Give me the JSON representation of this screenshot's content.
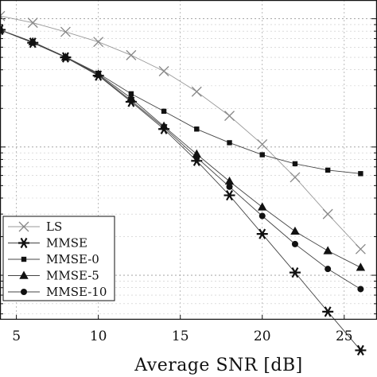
{
  "chart_data": {
    "type": "line",
    "xlabel": "Average  SNR  [dB]",
    "ylabel": "",
    "title": "",
    "xlim": [
      4,
      27
    ],
    "ylim": [
      0.0045,
      1.4
    ],
    "y_scale": "log",
    "x_ticks": [
      5,
      10,
      15,
      20,
      25
    ],
    "grid": true,
    "legend_position": "lower-left",
    "series": [
      {
        "name": "LS",
        "marker": "x",
        "color": "#888888",
        "x": [
          4,
          6,
          8,
          10,
          12,
          14,
          16,
          18,
          20,
          22,
          24,
          26
        ],
        "y": [
          1.05,
          0.93,
          0.79,
          0.66,
          0.52,
          0.39,
          0.27,
          0.175,
          0.105,
          0.058,
          0.03,
          0.016
        ]
      },
      {
        "name": "MMSE",
        "marker": "star",
        "color": "#333333",
        "x": [
          4,
          6,
          8,
          10,
          12,
          14,
          16,
          18,
          20,
          22,
          24,
          26
        ],
        "y": [
          0.82,
          0.65,
          0.5,
          0.36,
          0.225,
          0.138,
          0.078,
          0.042,
          0.021,
          0.0105,
          0.0052,
          0.0026
        ]
      },
      {
        "name": "MMSE-0",
        "marker": "square",
        "color": "#333333",
        "x": [
          4,
          6,
          8,
          10,
          12,
          14,
          16,
          18,
          20,
          22,
          24,
          26
        ],
        "y": [
          0.82,
          0.66,
          0.505,
          0.375,
          0.26,
          0.19,
          0.138,
          0.108,
          0.087,
          0.074,
          0.066,
          0.062
        ]
      },
      {
        "name": "MMSE-5",
        "marker": "triangle",
        "color": "#333333",
        "x": [
          4,
          6,
          8,
          10,
          12,
          14,
          16,
          18,
          20,
          22,
          24,
          26
        ],
        "y": [
          0.82,
          0.66,
          0.5,
          0.37,
          0.24,
          0.145,
          0.088,
          0.054,
          0.034,
          0.022,
          0.0155,
          0.0115
        ]
      },
      {
        "name": "MMSE-10",
        "marker": "circle",
        "color": "#333333",
        "x": [
          4,
          6,
          8,
          10,
          12,
          14,
          16,
          18,
          20,
          22,
          24,
          26
        ],
        "y": [
          0.82,
          0.65,
          0.5,
          0.365,
          0.23,
          0.142,
          0.083,
          0.049,
          0.029,
          0.0175,
          0.0112,
          0.0078
        ]
      }
    ]
  }
}
